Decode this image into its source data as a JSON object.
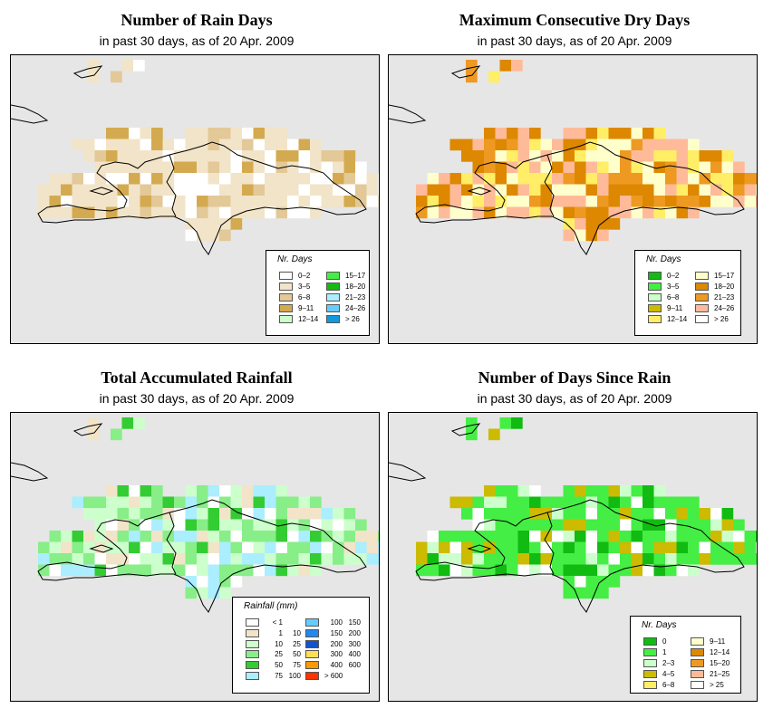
{
  "subtitle_all": "in past 30 days, as of  20 Apr. 2009",
  "panels": [
    {
      "title": "Number of Rain Days",
      "legend_title": "Nr. Days",
      "legend": [
        {
          "label": "0–2",
          "color": "#ffffff"
        },
        {
          "label": "3–5",
          "color": "#f2e4c8"
        },
        {
          "label": "6–8",
          "color": "#e3c898"
        },
        {
          "label": "9–11",
          "color": "#d4aa50"
        },
        {
          "label": "12–14",
          "color": "#ccffcc"
        },
        {
          "label": "15–17",
          "color": "#44ee44"
        },
        {
          "label": "18–20",
          "color": "#11bb11"
        },
        {
          "label": "21–23",
          "color": "#aaeeff"
        },
        {
          "label": "24–26",
          "color": "#66ccff"
        },
        {
          "label": "> 26",
          "color": "#1199dd"
        }
      ]
    },
    {
      "title": "Maximum Consecutive Dry Days",
      "legend_title": "Nr. Days",
      "legend": [
        {
          "label": "0–2",
          "color": "#11bb11"
        },
        {
          "label": "3–5",
          "color": "#44ee44"
        },
        {
          "label": "6–8",
          "color": "#ccffcc"
        },
        {
          "label": "9–11",
          "color": "#ccbb00"
        },
        {
          "label": "12–14",
          "color": "#ffee66"
        },
        {
          "label": "15–17",
          "color": "#ffffcc"
        },
        {
          "label": "18–20",
          "color": "#dd8800"
        },
        {
          "label": "21–23",
          "color": "#ee9922"
        },
        {
          "label": "24–26",
          "color": "#ffbb99"
        },
        {
          "label": "> 26",
          "color": "#ffffff"
        }
      ]
    },
    {
      "title": "Total Accumulated Rainfall",
      "legend_title": "Rainfall (mm)",
      "legend": [
        {
          "a": "< 1",
          "b": "",
          "color": "#ffffff"
        },
        {
          "a": "1",
          "b": "10",
          "color": "#f2e4c8"
        },
        {
          "a": "10",
          "b": "25",
          "color": "#ccffcc"
        },
        {
          "a": "25",
          "b": "50",
          "color": "#88ee88"
        },
        {
          "a": "50",
          "b": "75",
          "color": "#33cc33"
        },
        {
          "a": "75",
          "b": "100",
          "color": "#aaeeff"
        },
        {
          "a": "100",
          "b": "150",
          "color": "#66ccff"
        },
        {
          "a": "150",
          "b": "200",
          "color": "#2288ee"
        },
        {
          "a": "200",
          "b": "300",
          "color": "#1155cc"
        },
        {
          "a": "300",
          "b": "400",
          "color": "#ffdd55"
        },
        {
          "a": "400",
          "b": "600",
          "color": "#ff9900"
        },
        {
          "a": "> 600",
          "b": "",
          "color": "#ff3300"
        }
      ]
    },
    {
      "title": "Number of Days Since Rain",
      "legend_title": "Nr. Days",
      "legend": [
        {
          "label": "0",
          "color": "#11bb11"
        },
        {
          "label": "1",
          "color": "#44ee44"
        },
        {
          "label": "2–3",
          "color": "#ccffcc"
        },
        {
          "label": "4–5",
          "color": "#ccbb00"
        },
        {
          "label": "6–8",
          "color": "#ffee66"
        },
        {
          "label": "9–11",
          "color": "#ffffcc"
        },
        {
          "label": "12–14",
          "color": "#dd8800"
        },
        {
          "label": "15–20",
          "color": "#ee9922"
        },
        {
          "label": "21–25",
          "color": "#ffbb99"
        },
        {
          "label": "> 25",
          "color": "#ffffff"
        }
      ]
    }
  ]
}
